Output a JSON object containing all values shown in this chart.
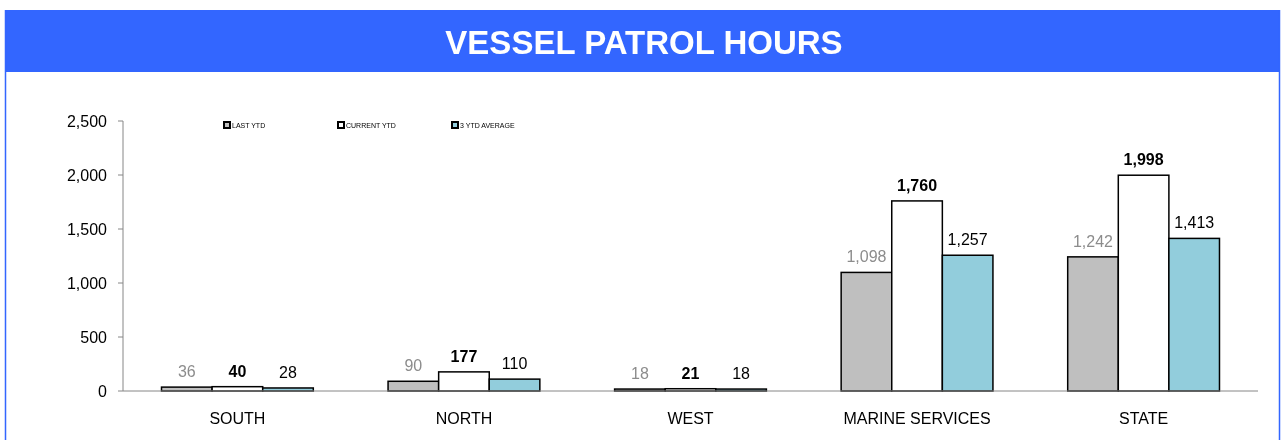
{
  "chart_data": {
    "type": "bar",
    "title": "VESSEL PATROL HOURS",
    "categories": [
      "SOUTH",
      "NORTH",
      "WEST",
      "MARINE SERVICES",
      "STATE"
    ],
    "series": [
      {
        "name": "LAST YTD",
        "color": "#bfbfbf",
        "values": [
          36,
          90,
          18,
          1098,
          1242
        ],
        "value_labels": [
          "36",
          "90",
          "18",
          "1,098",
          "1,242"
        ]
      },
      {
        "name": "CURRENT YTD",
        "color": "#ffffff",
        "values": [
          40,
          177,
          21,
          1760,
          1998
        ],
        "value_labels": [
          "40",
          "177",
          "21",
          "1,760",
          "1,998"
        ]
      },
      {
        "name": "3 YTD AVERAGE",
        "color": "#92cddc",
        "values": [
          28,
          110,
          18,
          1257,
          1413
        ],
        "value_labels": [
          "28",
          "110",
          "18",
          "1,257",
          "1,413"
        ]
      }
    ],
    "ylim": [
      0,
      2500
    ],
    "yticks": [
      {
        "value": 0,
        "label": "0"
      },
      {
        "value": 500,
        "label": "500"
      },
      {
        "value": 1000,
        "label": "1,000"
      },
      {
        "value": 1500,
        "label": "1,500"
      },
      {
        "value": 2000,
        "label": "2,000"
      },
      {
        "value": 2500,
        "label": "2,500"
      }
    ],
    "legend": "top left"
  }
}
